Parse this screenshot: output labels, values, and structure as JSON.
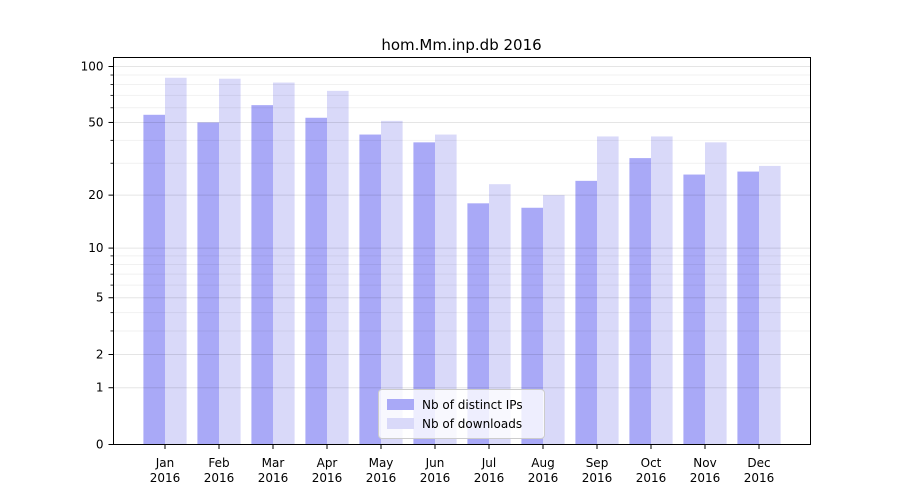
{
  "title": "hom.Mm.inp.db 2016",
  "colors": {
    "bar_ips": "#a9a9f7",
    "bar_downloads": "#d9d9f9",
    "grid_major": "rgba(0,0,0,0.10)",
    "grid_minor": "rgba(0,0,0,0.055)",
    "spine": "#000000",
    "tick_label": "#000000"
  },
  "axis": {
    "y_ticks": [
      100,
      50,
      20,
      10,
      5,
      2,
      1,
      0
    ],
    "y_grid_major": [
      1,
      2,
      5,
      10,
      20,
      50,
      100
    ],
    "y_grid_minor": [
      3,
      4,
      6,
      7,
      8,
      9,
      30,
      40,
      60,
      70,
      80,
      90
    ]
  },
  "legend": {
    "items": [
      {
        "label": "Nb of distinct IPs",
        "color_key": "bar_ips"
      },
      {
        "label": "Nb of downloads",
        "color_key": "bar_downloads"
      }
    ]
  },
  "chart_data": {
    "type": "bar",
    "title": "hom.Mm.inp.db 2016",
    "xlabel": "",
    "ylabel": "",
    "yscale": "log1p",
    "ylim": [
      0,
      110
    ],
    "grid": true,
    "legend_position": "lower center",
    "categories": [
      {
        "month": "Jan",
        "year": "2016"
      },
      {
        "month": "Feb",
        "year": "2016"
      },
      {
        "month": "Mar",
        "year": "2016"
      },
      {
        "month": "Apr",
        "year": "2016"
      },
      {
        "month": "May",
        "year": "2016"
      },
      {
        "month": "Jun",
        "year": "2016"
      },
      {
        "month": "Jul",
        "year": "2016"
      },
      {
        "month": "Aug",
        "year": "2016"
      },
      {
        "month": "Sep",
        "year": "2016"
      },
      {
        "month": "Oct",
        "year": "2016"
      },
      {
        "month": "Nov",
        "year": "2016"
      },
      {
        "month": "Dec",
        "year": "2016"
      }
    ],
    "series": [
      {
        "name": "Nb of distinct IPs",
        "values": [
          55,
          50,
          62,
          53,
          43,
          39,
          18,
          17,
          24,
          32,
          26,
          27
        ]
      },
      {
        "name": "Nb of downloads",
        "values": [
          87,
          86,
          82,
          74,
          51,
          43,
          23,
          20,
          42,
          42,
          39,
          29
        ]
      }
    ]
  }
}
